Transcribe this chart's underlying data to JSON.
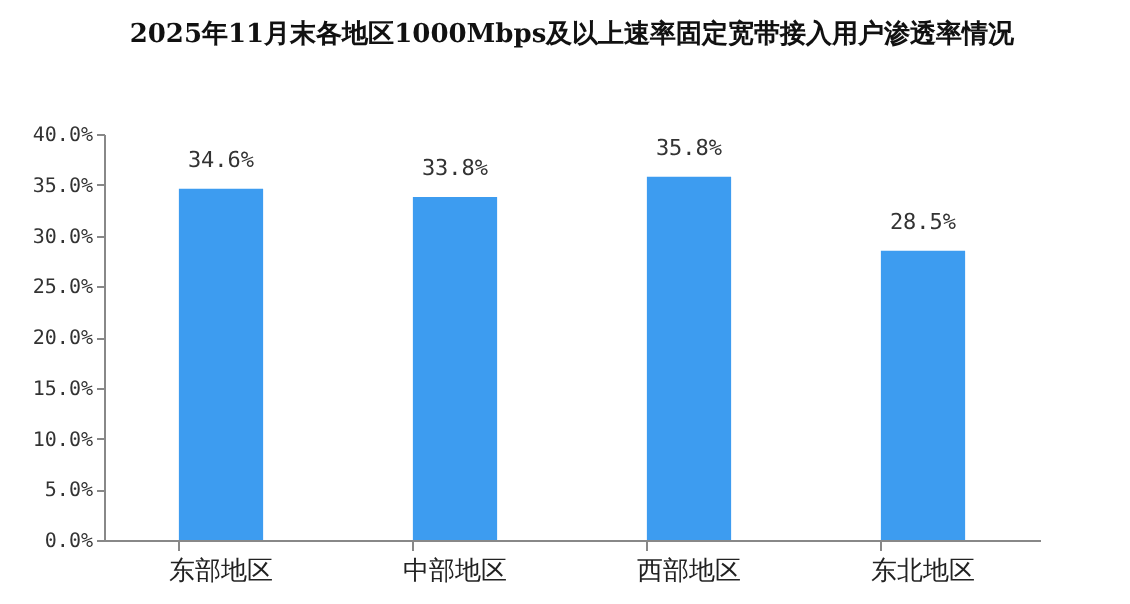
{
  "chart_data": {
    "type": "bar",
    "title": "2025年11月末各地区1000Mbps及以上速率固定宽带接入用户渗透率情况",
    "categories": [
      "东部地区",
      "中部地区",
      "西部地区",
      "东北地区"
    ],
    "values": [
      34.6,
      33.8,
      35.8,
      28.5
    ],
    "value_labels": [
      "34.6%",
      "33.8%",
      "35.8%",
      "28.5%"
    ],
    "color": "#3d9cf0",
    "ylim": [
      0,
      40
    ],
    "yticks": [
      {
        "value": 0,
        "label": "0.0%"
      },
      {
        "value": 5,
        "label": "5.0%"
      },
      {
        "value": 10,
        "label": "10.0%"
      },
      {
        "value": 15,
        "label": "15.0%"
      },
      {
        "value": 20,
        "label": "20.0%"
      },
      {
        "value": 25,
        "label": "25.0%"
      },
      {
        "value": 30,
        "label": "30.0%"
      },
      {
        "value": 35,
        "label": "35.0%"
      },
      {
        "value": 40,
        "label": "40.0%"
      }
    ],
    "grid": false
  }
}
